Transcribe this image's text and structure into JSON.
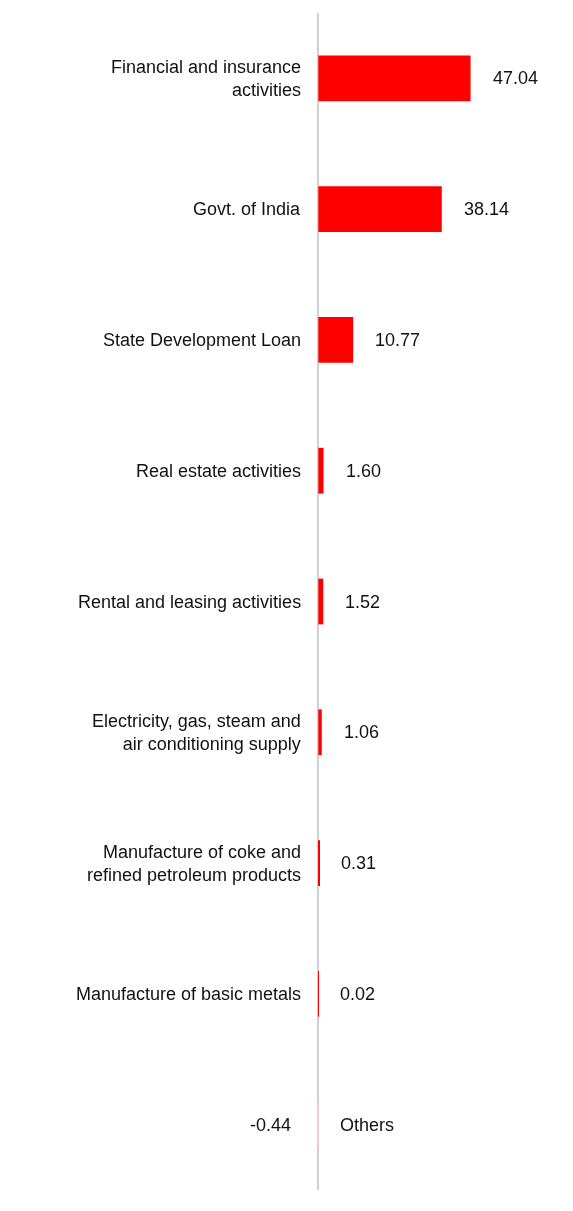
{
  "chart_data": {
    "type": "bar",
    "orientation": "horizontal",
    "data_labels": true,
    "categories": [
      "Financial and insurance activities",
      "Govt. of India",
      "State Development Loan",
      "Real estate activities",
      "Rental and leasing activities",
      "Electricity, gas, steam and air conditioning supply",
      "Manufacture of coke and refined petroleum products",
      "Manufacture of basic metals",
      "Others"
    ],
    "values": [
      47.04,
      38.14,
      10.77,
      1.6,
      1.52,
      1.06,
      0.31,
      0.02,
      -0.44
    ],
    "value_labels": [
      "47.04",
      "38.14",
      "10.77",
      "1.60",
      "1.52",
      "1.06",
      "0.31",
      "0.02",
      "-0.44"
    ],
    "colors": [
      "#ff0000",
      "#ff0000",
      "#ff0000",
      "#ff0000",
      "#ff0000",
      "#ff0000",
      "#ff0000",
      "#ff0000",
      "#f6caca"
    ]
  }
}
